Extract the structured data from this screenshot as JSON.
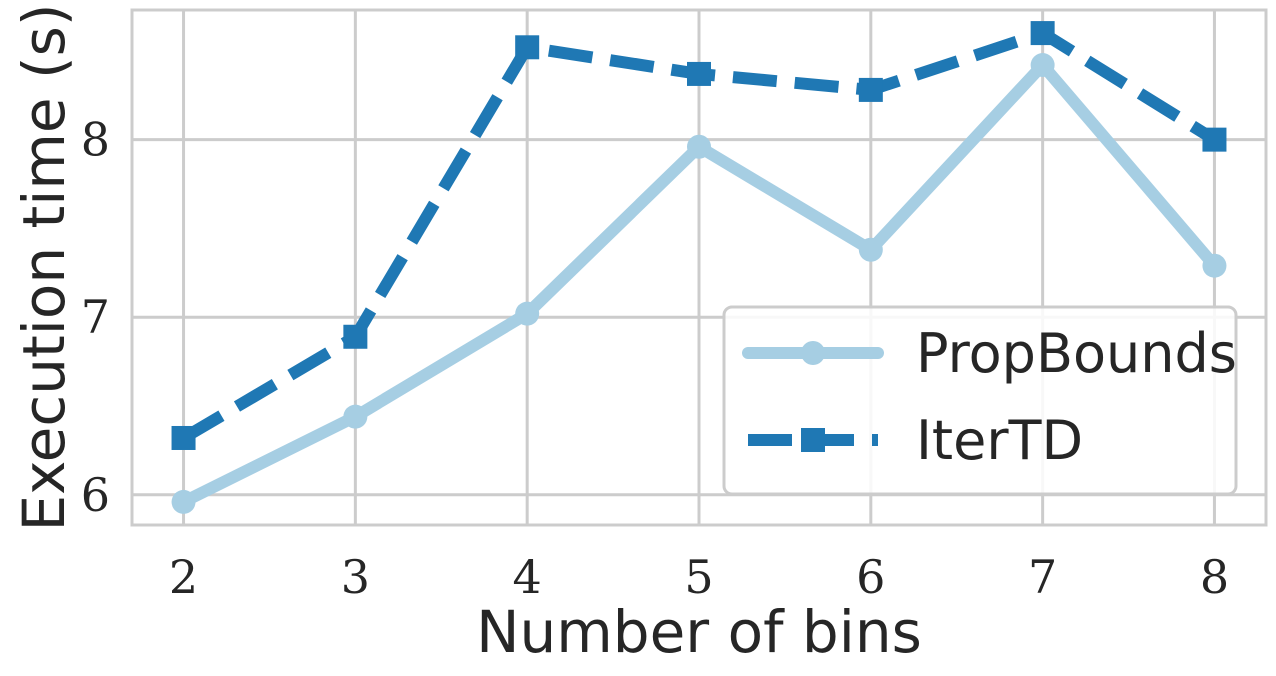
{
  "chart_data": {
    "type": "line",
    "xlabel": "Number of bins",
    "ylabel": "Execution time (s)",
    "x": [
      2,
      3,
      4,
      5,
      6,
      7,
      8
    ],
    "xlim": [
      1.7,
      8.3
    ],
    "ylim": [
      5.83,
      8.73
    ],
    "yticks": [
      6,
      7,
      8
    ],
    "grid": true,
    "legend_position": "lower-right",
    "series": [
      {
        "name": "PropBounds",
        "values": [
          5.96,
          6.44,
          7.02,
          7.96,
          7.38,
          8.42,
          7.29
        ],
        "color": "#a6cee3",
        "marker": "circle",
        "linestyle": "solid"
      },
      {
        "name": "IterTD",
        "values": [
          6.32,
          6.89,
          8.52,
          8.37,
          8.28,
          8.6,
          8.0
        ],
        "color": "#1f78b4",
        "marker": "square",
        "linestyle": "dashed"
      }
    ]
  }
}
